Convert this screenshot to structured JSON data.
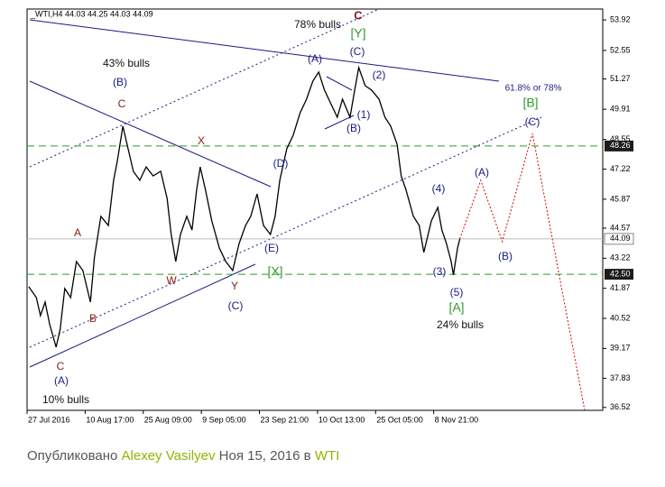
{
  "chart_data": {
    "type": "line",
    "header": "_WTI,H4  44.03 44.25 44.03 44.09",
    "x": [
      0.03,
      0.16,
      0.23,
      0.31,
      0.39,
      0.5,
      0.57,
      0.65,
      0.75,
      0.85,
      0.96,
      1.09,
      1.16,
      1.27,
      1.4,
      1.49,
      1.55,
      1.65,
      1.74,
      1.83,
      1.94,
      2.05,
      2.17,
      2.3,
      2.41,
      2.48,
      2.56,
      2.64,
      2.75,
      2.84,
      2.92,
      2.98,
      3.07,
      3.18,
      3.31,
      3.42,
      3.54,
      3.65,
      3.76,
      3.85,
      3.96,
      4.07,
      4.19,
      4.27,
      4.35,
      4.47,
      4.58,
      4.7,
      4.81,
      4.92,
      5.02,
      5.12,
      5.23,
      5.34,
      5.43,
      5.56,
      5.64,
      5.71,
      5.82,
      5.93,
      6.06,
      6.16,
      6.26,
      6.37,
      6.44,
      6.52,
      6.65,
      6.75,
      6.83,
      6.96,
      7.07,
      7.14,
      7.22,
      7.3,
      7.34,
      7.41,
      7.45
    ],
    "values": [
      41.94,
      41.45,
      40.64,
      41.25,
      40.24,
      39.23,
      40.04,
      41.86,
      41.45,
      43.07,
      42.67,
      41.25,
      43.28,
      45.1,
      44.69,
      46.72,
      47.53,
      49.15,
      48.13,
      47.12,
      46.72,
      47.32,
      46.92,
      47.12,
      45.91,
      44.29,
      43.07,
      44.29,
      45.1,
      44.49,
      46.31,
      47.32,
      46.31,
      44.9,
      43.68,
      43.07,
      42.67,
      43.88,
      44.69,
      45.1,
      46.11,
      44.69,
      44.29,
      45.1,
      46.72,
      48.13,
      48.74,
      49.75,
      50.36,
      51.17,
      51.58,
      50.77,
      50.16,
      49.55,
      50.36,
      49.55,
      50.77,
      51.78,
      50.97,
      50.77,
      50.36,
      49.55,
      49.15,
      48.34,
      46.92,
      46.31,
      45.1,
      44.69,
      43.48,
      44.9,
      45.5,
      44.49,
      43.88,
      43.07,
      42.47,
      43.68,
      44.09
    ],
    "color": "#000000",
    "forecast": {
      "x": [
        7.45,
        7.81,
        8.18,
        8.7,
        9.6
      ],
      "values": [
        44.09,
        46.72,
        43.97,
        48.82,
        36.39
      ],
      "color": "#dd0000"
    },
    "levels": [
      {
        "value": 48.26,
        "label": "48.26"
      },
      {
        "value": 42.5,
        "label": "42.50"
      }
    ],
    "level_color": "#2e9a2e",
    "last_price": 44.09,
    "xlim": [
      0,
      9.91
    ],
    "ylim": [
      36.39,
      54.41
    ],
    "xticks": [
      {
        "value": 0,
        "label": "27 Jul 2016"
      },
      {
        "value": 1,
        "label": "10 Aug 17:00"
      },
      {
        "value": 2,
        "label": "25 Aug 09:00"
      },
      {
        "value": 3,
        "label": "9 Sep 05:00"
      },
      {
        "value": 4,
        "label": "23 Sep 21:00"
      },
      {
        "value": 5,
        "label": "10 Oct 13:00"
      },
      {
        "value": 6,
        "label": "25 Oct 05:00"
      },
      {
        "value": 7,
        "label": "8 Nov 21:00"
      }
    ],
    "yticks": [
      53.92,
      52.55,
      51.27,
      49.91,
      48.55,
      47.22,
      45.87,
      44.57,
      43.22,
      41.87,
      40.52,
      39.17,
      37.83,
      36.52
    ],
    "annotations": [
      "78% bulls",
      "C",
      "[Y]",
      "(C)",
      "(A)",
      "(2)",
      "(1)",
      "(B)",
      "43% bulls",
      "(B)",
      "C",
      "X",
      "(D)",
      "(E)",
      "A",
      "W",
      "Y",
      "[X]",
      "(C)",
      "B",
      "C",
      "(A)",
      "10% bulls",
      "61.8% or 78%",
      "[B]",
      "(C)",
      "(A)",
      "(B)",
      "(4)",
      "(3)",
      "(5)",
      "[A]",
      "24% bulls"
    ]
  },
  "footer": {
    "prefix": "Опубликовано",
    "author": "Alexey Vasilyev",
    "date": "Ноя 15, 2016 в",
    "symbol": "WTI"
  }
}
